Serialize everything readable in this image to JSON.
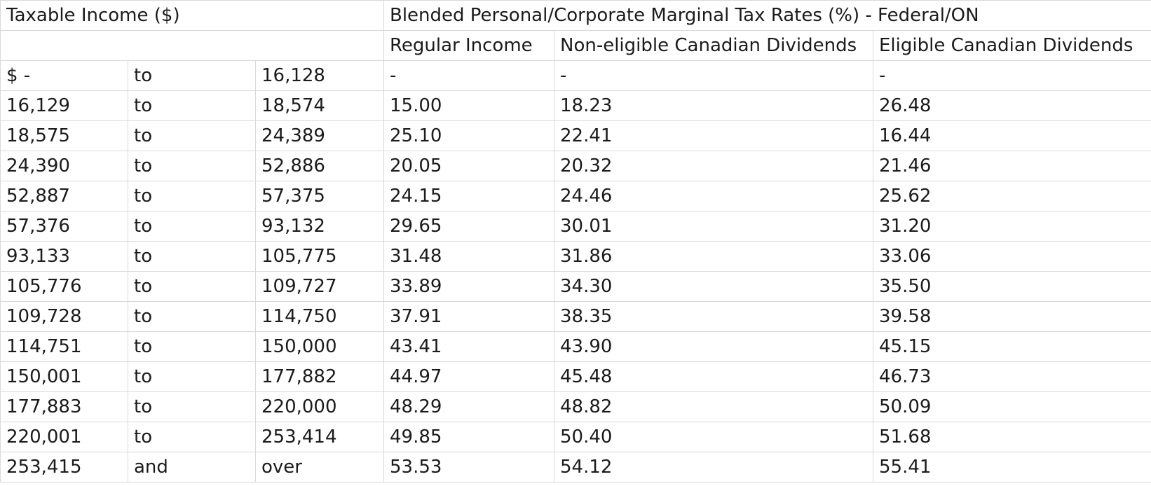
{
  "header": {
    "income_label": "Taxable Income ($)",
    "rates_title": "Blended Personal/Corporate Marginal Tax Rates (%) - Federal/ON",
    "col_regular": "Regular Income",
    "col_non_eligible": "Non-eligible Canadian Dividends",
    "col_eligible": "Eligible Canadian Dividends"
  },
  "rows": [
    {
      "from": "$ -",
      "sep": "to",
      "to": "16,128",
      "regular": "-",
      "non_eligible": "-",
      "eligible": "-"
    },
    {
      "from": "16,129",
      "sep": "to",
      "to": "18,574",
      "regular": "15.00",
      "non_eligible": "18.23",
      "eligible": "26.48"
    },
    {
      "from": "18,575",
      "sep": "to",
      "to": "24,389",
      "regular": "25.10",
      "non_eligible": "22.41",
      "eligible": "16.44"
    },
    {
      "from": "24,390",
      "sep": "to",
      "to": "52,886",
      "regular": "20.05",
      "non_eligible": "20.32",
      "eligible": "21.46"
    },
    {
      "from": "52,887",
      "sep": "to",
      "to": "57,375",
      "regular": "24.15",
      "non_eligible": "24.46",
      "eligible": "25.62"
    },
    {
      "from": "57,376",
      "sep": "to",
      "to": "93,132",
      "regular": "29.65",
      "non_eligible": "30.01",
      "eligible": "31.20"
    },
    {
      "from": "93,133",
      "sep": "to",
      "to": "105,775",
      "regular": "31.48",
      "non_eligible": "31.86",
      "eligible": "33.06"
    },
    {
      "from": "105,776",
      "sep": "to",
      "to": "109,727",
      "regular": "33.89",
      "non_eligible": "34.30",
      "eligible": "35.50"
    },
    {
      "from": "109,728",
      "sep": "to",
      "to": "114,750",
      "regular": "37.91",
      "non_eligible": "38.35",
      "eligible": "39.58"
    },
    {
      "from": "114,751",
      "sep": "to",
      "to": "150,000",
      "regular": "43.41",
      "non_eligible": "43.90",
      "eligible": "45.15"
    },
    {
      "from": "150,001",
      "sep": "to",
      "to": "177,882",
      "regular": "44.97",
      "non_eligible": "45.48",
      "eligible": "46.73"
    },
    {
      "from": "177,883",
      "sep": "to",
      "to": "220,000",
      "regular": "48.29",
      "non_eligible": "48.82",
      "eligible": "50.09"
    },
    {
      "from": "220,001",
      "sep": "to",
      "to": "253,414",
      "regular": "49.85",
      "non_eligible": "50.40",
      "eligible": "51.68"
    },
    {
      "from": "253,415",
      "sep": "and",
      "to": "over",
      "regular": "53.53",
      "non_eligible": "54.12",
      "eligible": "55.41"
    }
  ],
  "colors": {
    "grid": "#d9d9d9",
    "text": "#1b1b1b",
    "background": "#ffffff"
  }
}
